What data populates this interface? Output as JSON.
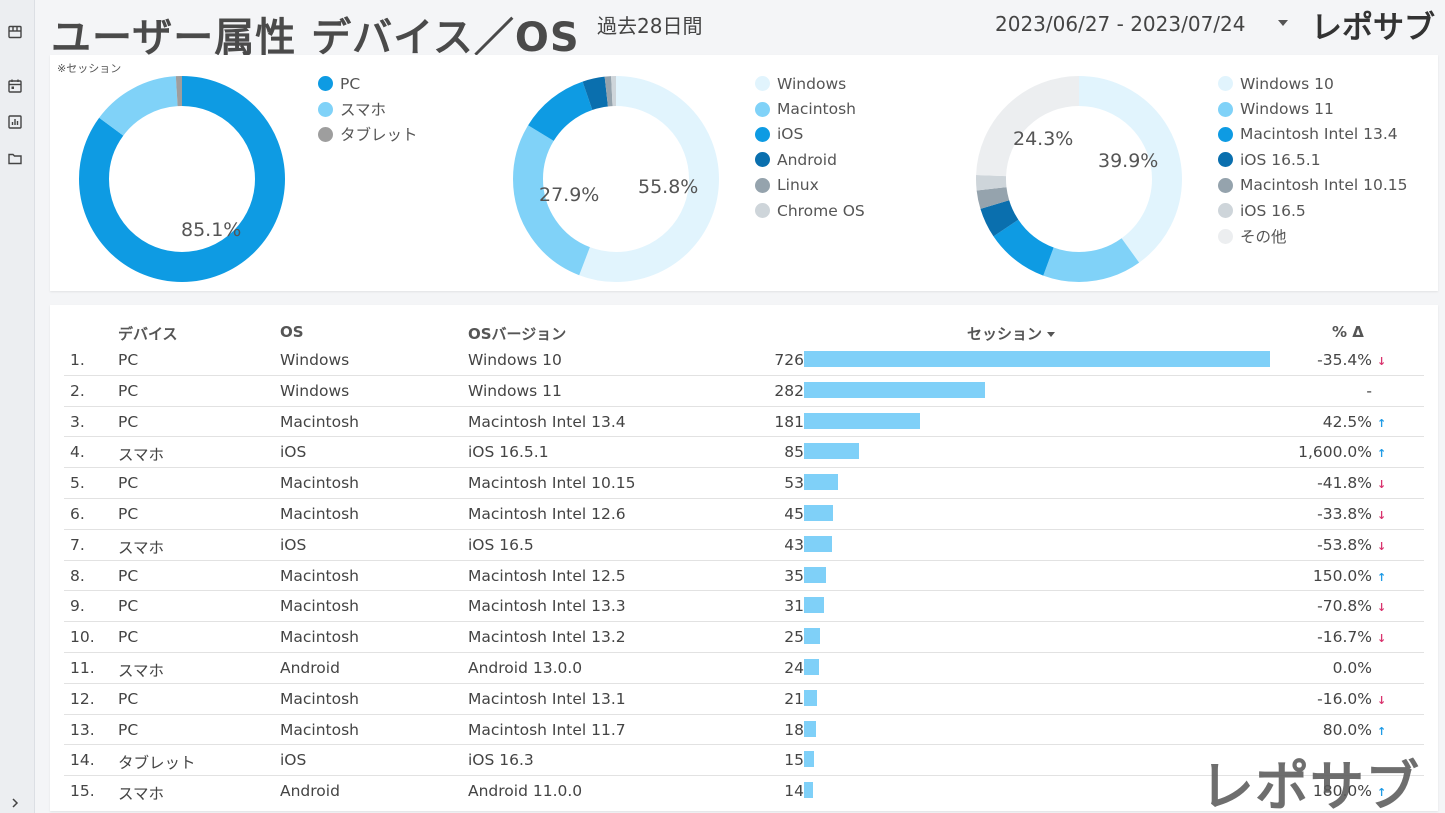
{
  "header": {
    "title": "ユーザー属性 デバイス／OS",
    "period": "過去28日間",
    "date_range": "2023/06/27 - 2023/07/24",
    "logo": "レポサブ"
  },
  "charts": {
    "note": "※セッション",
    "device": {
      "labels": [
        {
          "text": "85.1%"
        }
      ],
      "legend": [
        {
          "label": "PC",
          "color": "#0e9be3"
        },
        {
          "label": "スマホ",
          "color": "#80d2f8"
        },
        {
          "label": "タブレット",
          "color": "#9e9e9e"
        }
      ],
      "values": [
        85.1,
        13.9,
        1.0
      ]
    },
    "os": {
      "labels": [
        {
          "text": "55.8%"
        },
        {
          "text": "27.9%"
        }
      ],
      "legend": [
        {
          "label": "Windows",
          "color": "#e1f4fd"
        },
        {
          "label": "Macintosh",
          "color": "#80d2f8"
        },
        {
          "label": "iOS",
          "color": "#0e9be3"
        },
        {
          "label": "Android",
          "color": "#0a6fae"
        },
        {
          "label": "Linux",
          "color": "#95a3ad"
        },
        {
          "label": "Chrome OS",
          "color": "#ced5da"
        }
      ],
      "values": [
        55.8,
        27.9,
        11.0,
        3.5,
        1.0,
        0.8
      ]
    },
    "version": {
      "labels": [
        {
          "text": "39.9%"
        },
        {
          "text": "24.3%"
        }
      ],
      "legend": [
        {
          "label": "Windows 10",
          "color": "#e1f4fd"
        },
        {
          "label": "Windows 11",
          "color": "#80d2f8"
        },
        {
          "label": "Macintosh Intel 13.4",
          "color": "#0e9be3"
        },
        {
          "label": "iOS 16.5.1",
          "color": "#0a6fae"
        },
        {
          "label": "Macintosh Intel 10.15",
          "color": "#95a3ad"
        },
        {
          "label": "iOS 16.5",
          "color": "#ced5da"
        },
        {
          "label": "その他",
          "color": "#eceef0"
        }
      ],
      "values": [
        39.9,
        15.5,
        9.9,
        4.7,
        2.9,
        2.4,
        24.3
      ]
    }
  },
  "table": {
    "headers": {
      "device": "デバイス",
      "os": "OS",
      "version": "OSバージョン",
      "sessions": "セッション",
      "pct": "% Δ"
    },
    "max_sessions": 726,
    "rows": [
      {
        "idx": "1.",
        "device": "PC",
        "os": "Windows",
        "version": "Windows 10",
        "sessions": 726,
        "pct": "-35.4%",
        "trend": "down"
      },
      {
        "idx": "2.",
        "device": "PC",
        "os": "Windows",
        "version": "Windows 11",
        "sessions": 282,
        "pct": "-",
        "trend": "none"
      },
      {
        "idx": "3.",
        "device": "PC",
        "os": "Macintosh",
        "version": "Macintosh Intel 13.4",
        "sessions": 181,
        "pct": "42.5%",
        "trend": "up"
      },
      {
        "idx": "4.",
        "device": "スマホ",
        "os": "iOS",
        "version": "iOS 16.5.1",
        "sessions": 85,
        "pct": "1,600.0%",
        "trend": "up"
      },
      {
        "idx": "5.",
        "device": "PC",
        "os": "Macintosh",
        "version": "Macintosh Intel 10.15",
        "sessions": 53,
        "pct": "-41.8%",
        "trend": "down"
      },
      {
        "idx": "6.",
        "device": "PC",
        "os": "Macintosh",
        "version": "Macintosh Intel 12.6",
        "sessions": 45,
        "pct": "-33.8%",
        "trend": "down"
      },
      {
        "idx": "7.",
        "device": "スマホ",
        "os": "iOS",
        "version": "iOS 16.5",
        "sessions": 43,
        "pct": "-53.8%",
        "trend": "down"
      },
      {
        "idx": "8.",
        "device": "PC",
        "os": "Macintosh",
        "version": "Macintosh Intel 12.5",
        "sessions": 35,
        "pct": "150.0%",
        "trend": "up"
      },
      {
        "idx": "9.",
        "device": "PC",
        "os": "Macintosh",
        "version": "Macintosh Intel 13.3",
        "sessions": 31,
        "pct": "-70.8%",
        "trend": "down"
      },
      {
        "idx": "10.",
        "device": "PC",
        "os": "Macintosh",
        "version": "Macintosh Intel 13.2",
        "sessions": 25,
        "pct": "-16.7%",
        "trend": "down"
      },
      {
        "idx": "11.",
        "device": "スマホ",
        "os": "Android",
        "version": "Android 13.0.0",
        "sessions": 24,
        "pct": "0.0%",
        "trend": "none"
      },
      {
        "idx": "12.",
        "device": "PC",
        "os": "Macintosh",
        "version": "Macintosh Intel 13.1",
        "sessions": 21,
        "pct": "-16.0%",
        "trend": "down"
      },
      {
        "idx": "13.",
        "device": "PC",
        "os": "Macintosh",
        "version": "Macintosh Intel 11.7",
        "sessions": 18,
        "pct": "80.0%",
        "trend": "up"
      },
      {
        "idx": "14.",
        "device": "タブレット",
        "os": "iOS",
        "version": "iOS 16.3",
        "sessions": 15,
        "pct": "",
        "trend": "none"
      },
      {
        "idx": "15.",
        "device": "スマホ",
        "os": "Android",
        "version": "Android 11.0.0",
        "sessions": 14,
        "pct": "180.0%",
        "trend": "up"
      }
    ]
  },
  "watermark": {
    "logo": "レポサブ"
  }
}
